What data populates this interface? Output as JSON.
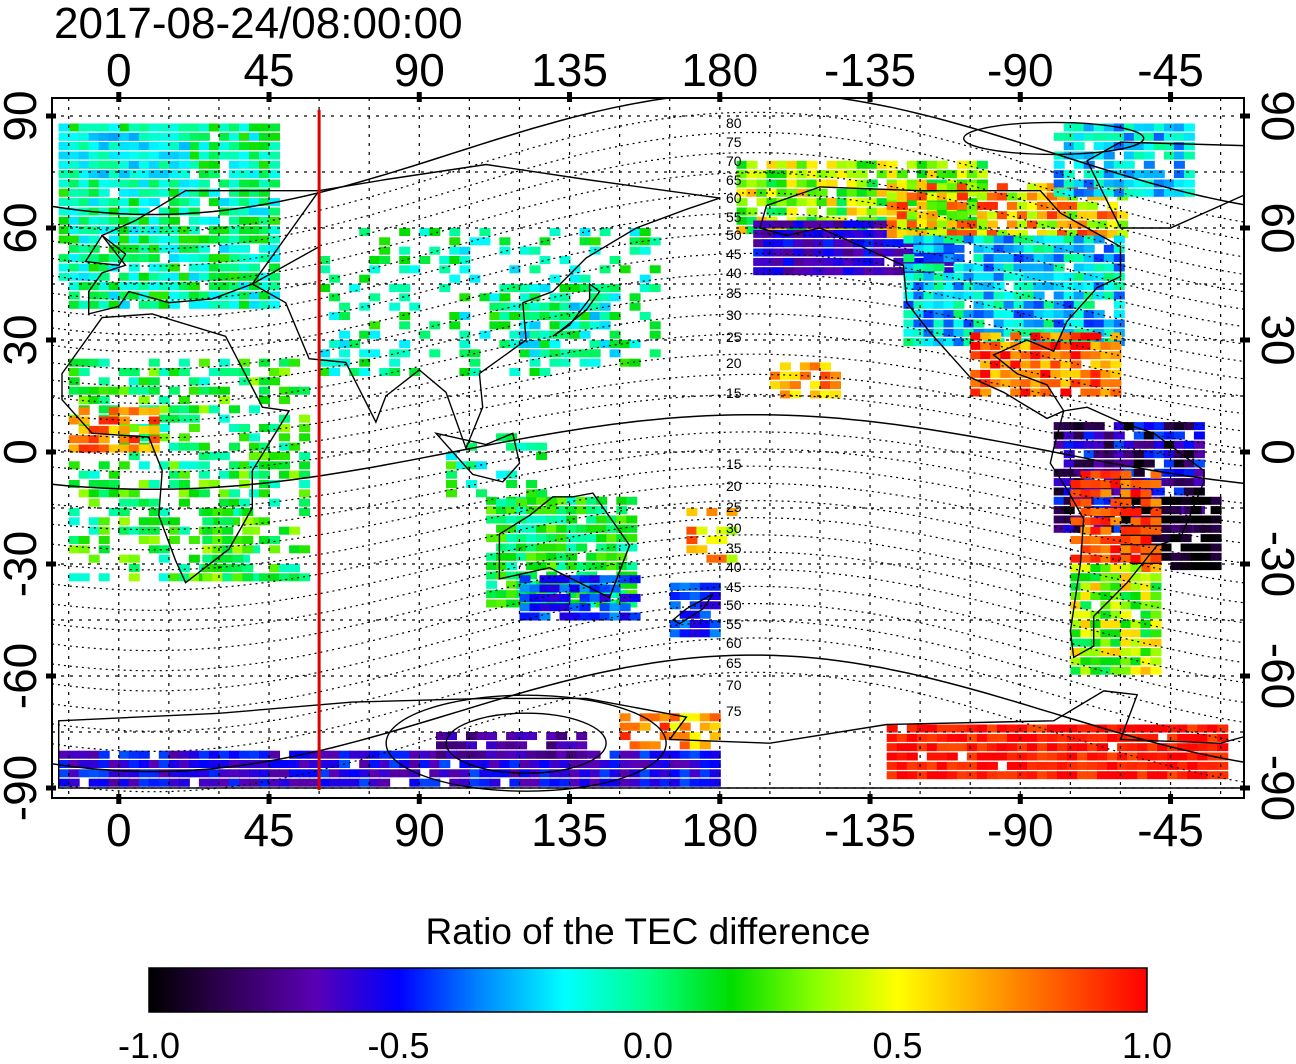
{
  "header": {
    "timestamp": "2017-08-24/08:00:00"
  },
  "axes": {
    "top_lon_ticks": [
      "0",
      "45",
      "90",
      "135",
      "180",
      "-135",
      "-90",
      "-45"
    ],
    "bottom_lon_ticks": [
      "0",
      "45",
      "90",
      "135",
      "180",
      "-135",
      "-90",
      "-45"
    ],
    "left_lat_ticks": [
      "90",
      "60",
      "30",
      "0",
      "-30",
      "-60",
      "-90"
    ],
    "right_lat_ticks": [
      "90",
      "60",
      "30",
      "0",
      "-30",
      "-60",
      "-90"
    ],
    "lon_range": [
      -20,
      337
    ],
    "lat_range": [
      -90,
      90
    ]
  },
  "meridian_marker": {
    "lon": 60,
    "color": "#dd0000"
  },
  "mag_lat_labels_north": [
    "80",
    "75",
    "70",
    "65",
    "60",
    "55",
    "50",
    "45",
    "40",
    "35",
    "30",
    "25",
    "20",
    "15"
  ],
  "mag_lat_labels_south": [
    "15",
    "20",
    "25",
    "30",
    "35",
    "40",
    "45",
    "50",
    "55",
    "60",
    "65",
    "70",
    "75"
  ],
  "colorbar": {
    "title": "Ratio of the TEC difference",
    "tick_labels": [
      "-1.0",
      "-0.5",
      "0.0",
      "0.5",
      "1.0"
    ],
    "range": [
      -1.0,
      1.0
    ],
    "stops": [
      "#000000",
      "#33005a",
      "#5a00b4",
      "#0000ff",
      "#0088ff",
      "#00ffff",
      "#00ff88",
      "#00dd00",
      "#88ff00",
      "#ffff00",
      "#ffaa00",
      "#ff5500",
      "#ff0000"
    ]
  },
  "tec_regions": [
    {
      "name": "north-america-subauroral-depletion",
      "lon": 250,
      "lat": 55,
      "value": -0.55
    },
    {
      "name": "north-america-auroral-enhancement",
      "lon": 262,
      "lat": 62,
      "value": 0.7
    },
    {
      "name": "central-america-enhancement",
      "lon": 275,
      "lat": 15,
      "value": 0.9
    },
    {
      "name": "south-america-depletion",
      "lon": 315,
      "lat": -18,
      "value": -0.95
    },
    {
      "name": "south-america-enhancement",
      "lon": 300,
      "lat": -25,
      "value": 0.9
    },
    {
      "name": "antarctic-enhancement",
      "lon": 260,
      "lat": -80,
      "value": 0.95
    },
    {
      "name": "australia-south-depletion",
      "lon": 140,
      "lat": -42,
      "value": -0.45
    },
    {
      "name": "new-zealand-depletion",
      "lon": 172,
      "lat": -42,
      "value": -0.45
    },
    {
      "name": "west-africa-enhancement",
      "lon": 5,
      "lat": 5,
      "value": 0.8
    },
    {
      "name": "europe-asia-near-zero",
      "lon": 60,
      "lat": 55,
      "value": 0.05
    },
    {
      "name": "south-pole-depletion",
      "lon": 140,
      "lat": -88,
      "value": -0.6
    }
  ]
}
